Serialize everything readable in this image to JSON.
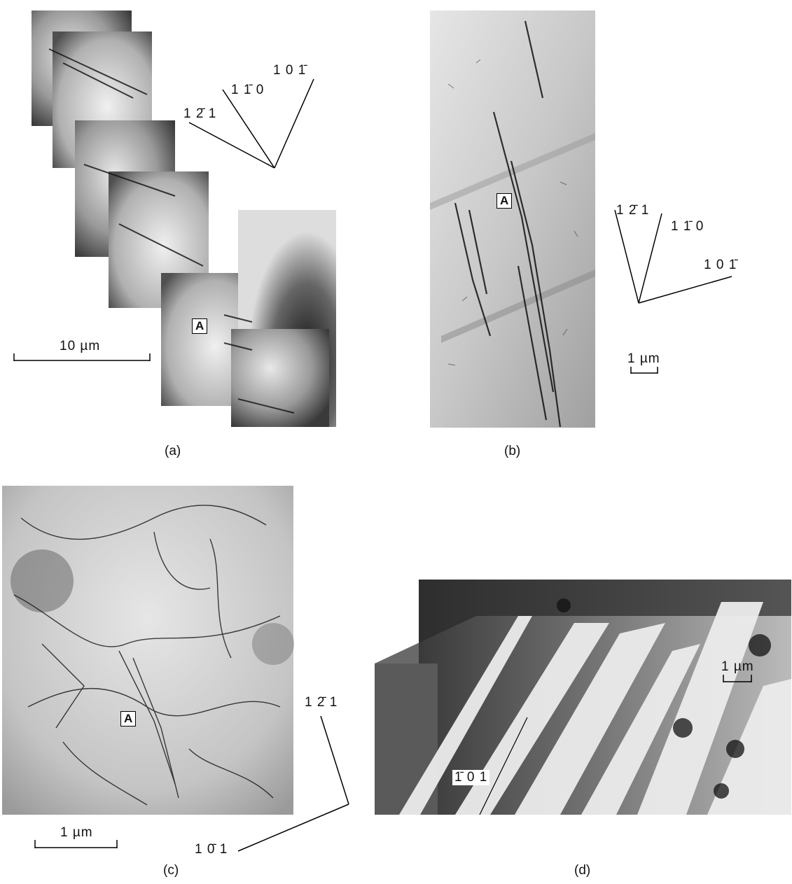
{
  "figure": {
    "panels": [
      {
        "caption": "(a)",
        "marker": "A",
        "scale_bar": "10 µm",
        "directions": [
          "1 2̄ 1",
          "1 1̄ 0",
          "1 0 1̄"
        ]
      },
      {
        "caption": "(b)",
        "marker": "A",
        "scale_bar": "1 µm",
        "directions": [
          "1 2̄ 1",
          "1 1̄ 0",
          "1 0 1̄"
        ]
      },
      {
        "caption": "(c)",
        "marker": "A",
        "scale_bar": "1 µm",
        "directions": [
          "1 2̄ 1",
          "1 0̄ 1"
        ]
      },
      {
        "caption": "(d)",
        "scale_bar": "1 µm",
        "directions": [
          "1̄ 0 1"
        ]
      }
    ]
  }
}
